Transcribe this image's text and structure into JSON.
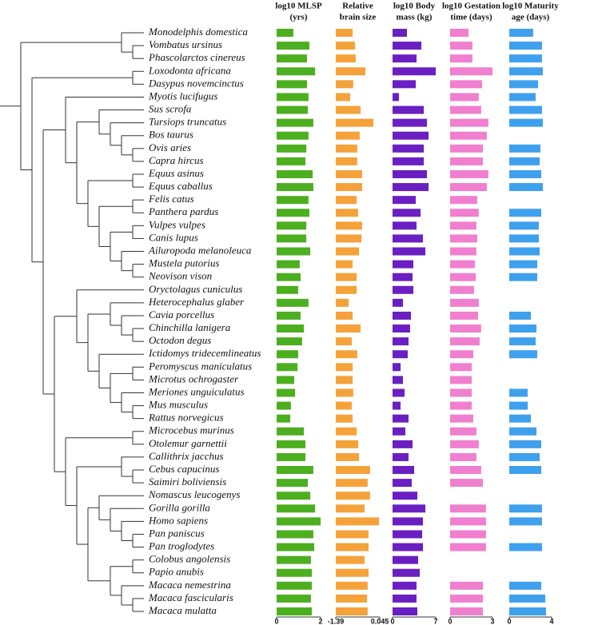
{
  "chart_data": {
    "type": "bar",
    "orientation": "horizontal",
    "categories": [
      "Monodelphis domestica",
      "Vombatus ursinus",
      "Phascolarctos cinereus",
      "Loxodonta africana",
      "Dasypus novemcinctus",
      "Myotis lucifugus",
      "Sus scrofa",
      "Tursiops truncatus",
      "Bos taurus",
      "Ovis aries",
      "Capra hircus",
      "Equus asinus",
      "Equus caballus",
      "Felis catus",
      "Panthera pardus",
      "Vulpes vulpes",
      "Canis lupus",
      "Ailuropoda melanoleuca",
      "Mustela putorius",
      "Neovison vison",
      "Oryctolagus cuniculus",
      "Heterocephalus glaber",
      "Cavia porcellus",
      "Chinchilla lanigera",
      "Octodon degus",
      "Ictidomys tridecemlineatus",
      "Peromyscus maniculatus",
      "Microtus ochrogaster",
      "Meriones unguiculatus",
      "Mus musculus",
      "Rattus norvegicus",
      "Microcebus murinus",
      "Otolemur garnettii",
      "Callithrix jacchus",
      "Cebus capucinus",
      "Saimiri boliviensis",
      "Nomascus leucogenys",
      "Gorilla gorilla",
      "Homo sapiens",
      "Pan paniscus",
      "Pan troglodytes",
      "Colobus angolensis",
      "Papio anubis",
      "Macaca nemestrina",
      "Macaca fascicularis",
      "Macaca mulatta"
    ],
    "series": [
      {
        "name": [
          "log10 MLSP",
          "(yrs)"
        ],
        "color": "#4caf1f",
        "xlim": [
          0,
          2
        ],
        "xticks": [
          0,
          2
        ],
        "values": [
          0.76,
          1.49,
          1.38,
          1.75,
          1.38,
          1.45,
          1.42,
          1.67,
          1.45,
          1.35,
          1.31,
          1.64,
          1.67,
          1.45,
          1.49,
          1.35,
          1.35,
          1.53,
          1.05,
          1.09,
          0.98,
          1.45,
          1.09,
          1.24,
          1.16,
          0.98,
          0.95,
          0.8,
          0.84,
          0.65,
          0.62,
          1.24,
          1.31,
          1.31,
          1.67,
          1.42,
          1.53,
          1.75,
          2,
          1.67,
          1.71,
          1.56,
          1.6,
          1.6,
          1.56,
          1.6
        ]
      },
      {
        "name": [
          "Relative",
          "brain size"
        ],
        "color": "#f5a23a",
        "xlim": [
          -1.39,
          0.045
        ],
        "xticks": [
          -1.39,
          0.045
        ],
        "values": [
          -0.84,
          -0.76,
          -0.74,
          -0.42,
          -0.82,
          -0.92,
          -0.58,
          -0.16,
          -0.61,
          -0.69,
          -0.69,
          -0.53,
          -0.53,
          -0.71,
          -0.66,
          -0.53,
          -0.55,
          -0.63,
          -0.84,
          -0.71,
          -0.71,
          -0.97,
          -0.84,
          -0.58,
          -0.87,
          -0.69,
          -0.84,
          -0.84,
          -0.82,
          -0.87,
          -0.84,
          -0.71,
          -0.66,
          -0.63,
          -0.27,
          -0.35,
          -0.27,
          -0.45,
          0.02,
          -0.32,
          -0.32,
          -0.45,
          -0.32,
          -0.35,
          -0.37,
          -0.35
        ]
      },
      {
        "name": [
          "log10 Body",
          "mass (kg)"
        ],
        "color": "#6a1fc2",
        "xlim": [
          0,
          7
        ],
        "xticks": [
          0,
          7
        ],
        "values": [
          2.33,
          4.67,
          3.89,
          7,
          3.76,
          1.04,
          5.06,
          5.58,
          5.84,
          5.06,
          5.06,
          5.58,
          5.84,
          3.76,
          4.54,
          3.89,
          4.93,
          5.32,
          3.37,
          3.24,
          3.37,
          1.69,
          2.98,
          2.85,
          2.59,
          2.46,
          1.3,
          1.69,
          1.95,
          1.3,
          2.59,
          2.08,
          3.24,
          2.59,
          3.5,
          3.11,
          4.02,
          5.32,
          4.93,
          4.8,
          4.93,
          4.15,
          4.41,
          3.89,
          3.89,
          4.02
        ]
      },
      {
        "name": [
          "log10 Gestation",
          "time (days)"
        ],
        "color": "#f07fcf",
        "xlim": [
          0,
          3
        ],
        "xticks": [
          0,
          3
        ],
        "values": [
          1.3,
          1.58,
          1.58,
          3,
          2.26,
          2.03,
          2.2,
          2.71,
          2.6,
          2.32,
          2.32,
          2.71,
          2.6,
          1.92,
          2.03,
          1.86,
          1.92,
          1.86,
          1.75,
          1.81,
          1.69,
          2.03,
          1.98,
          2.2,
          2.09,
          1.64,
          1.53,
          1.53,
          1.53,
          1.53,
          1.64,
          1.86,
          2.03,
          1.86,
          2.2,
          2.32,
          null,
          2.54,
          2.54,
          2.54,
          2.54,
          null,
          null,
          2.32,
          2.32,
          2.32
        ]
      },
      {
        "name": [
          "log10 Maturity",
          "age (days)"
        ],
        "color": "#3fa0ee",
        "xlim": [
          0,
          4
        ],
        "xticks": [
          0,
          4
        ],
        "values": [
          2.26,
          3.09,
          3.09,
          3.17,
          2.72,
          2.49,
          3.09,
          3.17,
          null,
          2.94,
          2.87,
          3.02,
          3.17,
          null,
          3.02,
          2.79,
          2.79,
          2.87,
          2.64,
          2.64,
          null,
          null,
          2.04,
          2.57,
          2.49,
          2.64,
          null,
          null,
          1.74,
          1.74,
          2.04,
          2.57,
          3.02,
          2.87,
          3.02,
          null,
          null,
          3.09,
          3.09,
          null,
          3.09,
          null,
          null,
          3.02,
          3.4,
          3.47
        ]
      }
    ]
  }
}
